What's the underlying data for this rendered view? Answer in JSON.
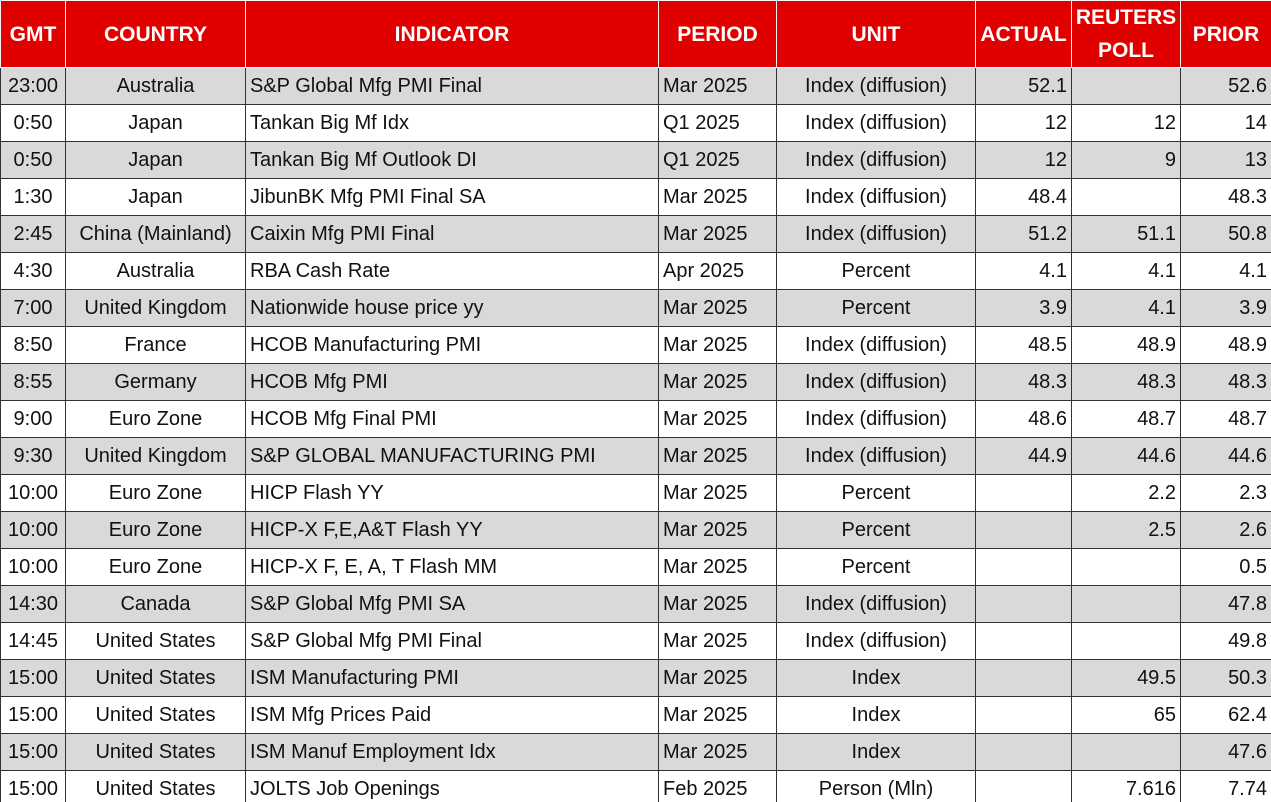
{
  "table": {
    "header": [
      "GMT",
      "COUNTRY",
      "INDICATOR",
      "PERIOD",
      "UNIT",
      "ACTUAL",
      "REUTERS POLL",
      "PRIOR"
    ],
    "rows": [
      [
        "23:00",
        "Australia",
        "S&P Global Mfg PMI Final",
        "Mar 2025",
        "Index (diffusion)",
        "52.1",
        null,
        "52.6"
      ],
      [
        "0:50",
        "Japan",
        "Tankan Big Mf Idx",
        "Q1 2025",
        "Index (diffusion)",
        "12",
        "12",
        "14"
      ],
      [
        "0:50",
        "Japan",
        "Tankan Big Mf Outlook DI",
        "Q1 2025",
        "Index (diffusion)",
        "12",
        "9",
        "13"
      ],
      [
        "1:30",
        "Japan",
        "JibunBK Mfg PMI Final SA",
        "Mar 2025",
        "Index (diffusion)",
        "48.4",
        null,
        "48.3"
      ],
      [
        "2:45",
        "China (Mainland)",
        "Caixin Mfg PMI Final",
        "Mar 2025",
        "Index (diffusion)",
        "51.2",
        "51.1",
        "50.8"
      ],
      [
        "4:30",
        "Australia",
        "RBA Cash Rate",
        "Apr 2025",
        "Percent",
        "4.1",
        "4.1",
        "4.1"
      ],
      [
        "7:00",
        "United Kingdom",
        "Nationwide house price yy",
        "Mar 2025",
        "Percent",
        "3.9",
        "4.1",
        "3.9"
      ],
      [
        "8:50",
        "France",
        "HCOB Manufacturing PMI",
        "Mar 2025",
        "Index (diffusion)",
        "48.5",
        "48.9",
        "48.9"
      ],
      [
        "8:55",
        "Germany",
        "HCOB Mfg PMI",
        "Mar 2025",
        "Index (diffusion)",
        "48.3",
        "48.3",
        "48.3"
      ],
      [
        "9:00",
        "Euro Zone",
        "HCOB Mfg Final PMI",
        "Mar 2025",
        "Index (diffusion)",
        "48.6",
        "48.7",
        "48.7"
      ],
      [
        "9:30",
        "United Kingdom",
        "S&P GLOBAL MANUFACTURING PMI",
        "Mar 2025",
        "Index (diffusion)",
        "44.9",
        "44.6",
        "44.6"
      ],
      [
        "10:00",
        "Euro Zone",
        "HICP Flash YY",
        "Mar 2025",
        "Percent",
        null,
        "2.2",
        "2.3"
      ],
      [
        "10:00",
        "Euro Zone",
        "HICP-X F,E,A&T Flash YY",
        "Mar 2025",
        "Percent",
        null,
        "2.5",
        "2.6"
      ],
      [
        "10:00",
        "Euro Zone",
        "HICP-X F, E, A, T Flash MM",
        "Mar 2025",
        "Percent",
        null,
        null,
        "0.5"
      ],
      [
        "14:30",
        "Canada",
        "S&P Global Mfg PMI SA",
        "Mar 2025",
        "Index (diffusion)",
        null,
        null,
        "47.8"
      ],
      [
        "14:45",
        "United States",
        "S&P Global Mfg PMI Final",
        "Mar 2025",
        "Index (diffusion)",
        null,
        null,
        "49.8"
      ],
      [
        "15:00",
        "United States",
        "ISM Manufacturing PMI",
        "Mar 2025",
        "Index",
        null,
        "49.5",
        "50.3"
      ],
      [
        "15:00",
        "United States",
        "ISM Mfg Prices Paid",
        "Mar 2025",
        "Index",
        null,
        "65",
        "62.4"
      ],
      [
        "15:00",
        "United States",
        "ISM Manuf Employment Idx",
        "Mar 2025",
        "Index",
        null,
        null,
        "47.6"
      ],
      [
        "15:00",
        "United States",
        "JOLTS Job Openings",
        "Feb 2025",
        "Person (Mln)",
        null,
        "7.616",
        "7.74"
      ]
    ]
  }
}
